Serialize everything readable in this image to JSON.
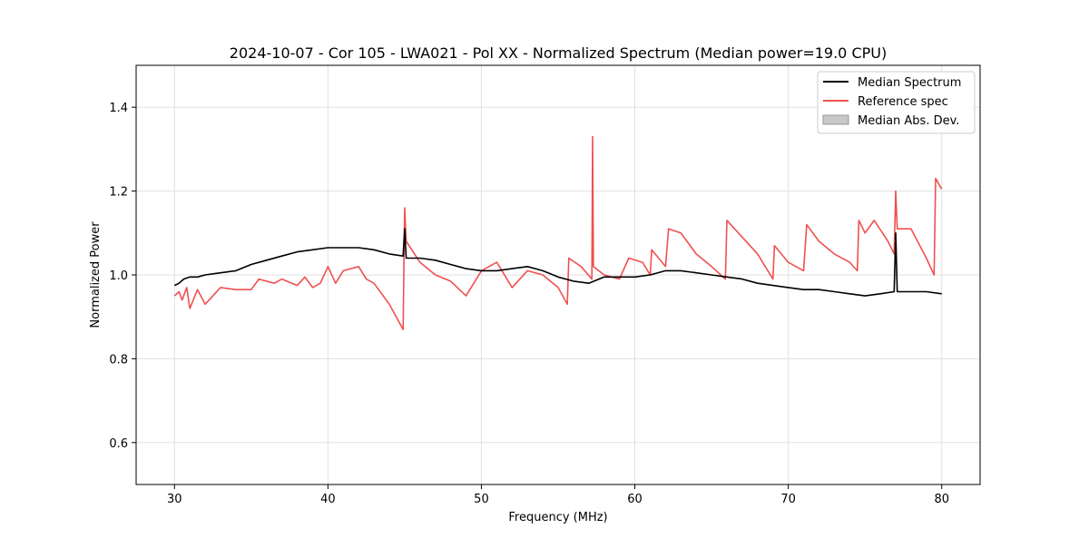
{
  "chart_data": {
    "type": "line",
    "title": "2024-10-07 - Cor 105 - LWA021 - Pol XX - Normalized Spectrum (Median power=19.0 CPU)",
    "xlabel": "Frequency (MHz)",
    "ylabel": "Normalized Power",
    "xlim": [
      27.5,
      82.5
    ],
    "ylim": [
      0.5,
      1.5
    ],
    "xticks": [
      30,
      40,
      50,
      60,
      70,
      80
    ],
    "yticks": [
      0.6,
      0.8,
      1.0,
      1.2,
      1.4
    ],
    "xtick_labels": [
      "30",
      "40",
      "50",
      "60",
      "70",
      "80"
    ],
    "ytick_labels": [
      "0.6",
      "0.8",
      "1.0",
      "1.2",
      "1.4"
    ],
    "grid": true,
    "legend": {
      "position": "top-right",
      "entries": [
        "Median Spectrum",
        "Reference spec",
        "Median Abs. Dev."
      ]
    },
    "series": [
      {
        "name": "Median Spectrum",
        "color": "#000000",
        "points": [
          [
            30.0,
            0.975
          ],
          [
            30.3,
            0.98
          ],
          [
            30.6,
            0.99
          ],
          [
            31.0,
            0.995
          ],
          [
            31.5,
            0.995
          ],
          [
            32.0,
            1.0
          ],
          [
            33.0,
            1.005
          ],
          [
            34.0,
            1.01
          ],
          [
            35.0,
            1.025
          ],
          [
            36.0,
            1.035
          ],
          [
            37.0,
            1.045
          ],
          [
            38.0,
            1.055
          ],
          [
            39.0,
            1.06
          ],
          [
            40.0,
            1.065
          ],
          [
            41.0,
            1.065
          ],
          [
            42.0,
            1.065
          ],
          [
            43.0,
            1.06
          ],
          [
            44.0,
            1.05
          ],
          [
            44.9,
            1.045
          ],
          [
            45.0,
            1.11
          ],
          [
            45.1,
            1.04
          ],
          [
            46.0,
            1.04
          ],
          [
            47.0,
            1.035
          ],
          [
            48.0,
            1.025
          ],
          [
            49.0,
            1.015
          ],
          [
            50.0,
            1.01
          ],
          [
            51.0,
            1.01
          ],
          [
            52.0,
            1.015
          ],
          [
            53.0,
            1.02
          ],
          [
            54.0,
            1.01
          ],
          [
            55.0,
            0.995
          ],
          [
            56.0,
            0.985
          ],
          [
            57.0,
            0.98
          ],
          [
            58.0,
            0.995
          ],
          [
            59.0,
            0.995
          ],
          [
            60.0,
            0.995
          ],
          [
            61.0,
            1.0
          ],
          [
            62.0,
            1.01
          ],
          [
            63.0,
            1.01
          ],
          [
            64.0,
            1.005
          ],
          [
            65.0,
            1.0
          ],
          [
            66.0,
            0.995
          ],
          [
            67.0,
            0.99
          ],
          [
            68.0,
            0.98
          ],
          [
            69.0,
            0.975
          ],
          [
            70.0,
            0.97
          ],
          [
            71.0,
            0.965
          ],
          [
            72.0,
            0.965
          ],
          [
            73.0,
            0.96
          ],
          [
            74.0,
            0.955
          ],
          [
            75.0,
            0.95
          ],
          [
            76.0,
            0.955
          ],
          [
            76.9,
            0.96
          ],
          [
            77.0,
            1.1
          ],
          [
            77.1,
            0.96
          ],
          [
            78.0,
            0.96
          ],
          [
            79.0,
            0.96
          ],
          [
            80.0,
            0.955
          ]
        ]
      },
      {
        "name": "Reference spec",
        "color": "#f05050",
        "points": [
          [
            30.0,
            0.95
          ],
          [
            30.3,
            0.96
          ],
          [
            30.5,
            0.94
          ],
          [
            30.8,
            0.97
          ],
          [
            31.0,
            0.92
          ],
          [
            31.5,
            0.965
          ],
          [
            32.0,
            0.93
          ],
          [
            33.0,
            0.97
          ],
          [
            34.0,
            0.965
          ],
          [
            35.0,
            0.965
          ],
          [
            35.5,
            0.99
          ],
          [
            36.5,
            0.98
          ],
          [
            37.0,
            0.99
          ],
          [
            38.0,
            0.975
          ],
          [
            38.5,
            0.995
          ],
          [
            39.0,
            0.97
          ],
          [
            39.5,
            0.98
          ],
          [
            40.0,
            1.02
          ],
          [
            40.5,
            0.98
          ],
          [
            41.0,
            1.01
          ],
          [
            42.0,
            1.02
          ],
          [
            42.5,
            0.99
          ],
          [
            43.0,
            0.98
          ],
          [
            44.0,
            0.93
          ],
          [
            44.9,
            0.87
          ],
          [
            45.0,
            1.16
          ],
          [
            45.1,
            1.08
          ],
          [
            46.0,
            1.03
          ],
          [
            47.0,
            1.0
          ],
          [
            48.0,
            0.985
          ],
          [
            49.0,
            0.95
          ],
          [
            50.0,
            1.01
          ],
          [
            51.0,
            1.03
          ],
          [
            52.0,
            0.97
          ],
          [
            53.0,
            1.01
          ],
          [
            54.0,
            1.0
          ],
          [
            55.0,
            0.97
          ],
          [
            55.6,
            0.93
          ],
          [
            55.7,
            1.04
          ],
          [
            56.5,
            1.02
          ],
          [
            57.2,
            0.99
          ],
          [
            57.25,
            1.33
          ],
          [
            57.3,
            1.02
          ],
          [
            58.0,
            1.0
          ],
          [
            59.0,
            0.99
          ],
          [
            59.6,
            1.04
          ],
          [
            60.5,
            1.03
          ],
          [
            61.0,
            1.0
          ],
          [
            61.1,
            1.06
          ],
          [
            62.0,
            1.02
          ],
          [
            62.2,
            1.11
          ],
          [
            63.0,
            1.1
          ],
          [
            64.0,
            1.05
          ],
          [
            65.0,
            1.02
          ],
          [
            65.9,
            0.99
          ],
          [
            66.0,
            1.13
          ],
          [
            67.0,
            1.09
          ],
          [
            68.0,
            1.05
          ],
          [
            69.0,
            0.99
          ],
          [
            69.1,
            1.07
          ],
          [
            70.0,
            1.03
          ],
          [
            71.0,
            1.01
          ],
          [
            71.2,
            1.12
          ],
          [
            72.0,
            1.08
          ],
          [
            73.0,
            1.05
          ],
          [
            74.0,
            1.03
          ],
          [
            74.5,
            1.01
          ],
          [
            74.6,
            1.13
          ],
          [
            75.0,
            1.1
          ],
          [
            75.6,
            1.13
          ],
          [
            76.5,
            1.08
          ],
          [
            76.9,
            1.05
          ],
          [
            77.0,
            1.2
          ],
          [
            77.1,
            1.11
          ],
          [
            78.0,
            1.11
          ],
          [
            79.0,
            1.04
          ],
          [
            79.5,
            1.0
          ],
          [
            79.6,
            1.23
          ],
          [
            80.0,
            1.205
          ]
        ]
      },
      {
        "name": "Median Abs. Dev.",
        "color": "#c8c8c8",
        "points": []
      }
    ]
  }
}
